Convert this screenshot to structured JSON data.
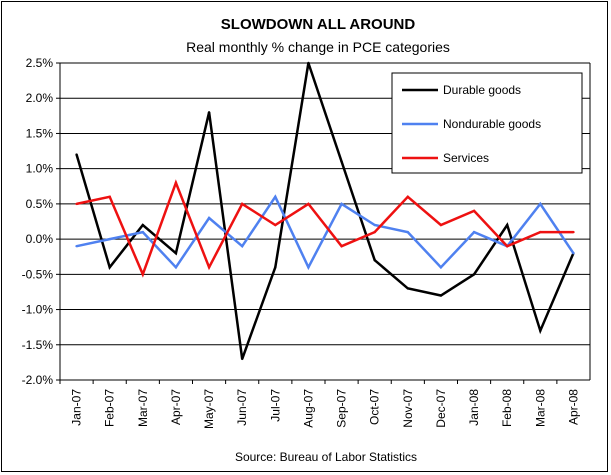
{
  "chart_data": {
    "type": "line",
    "title": "SLOWDOWN ALL AROUND",
    "subtitle": "Real monthly % change in PCE categories",
    "source": "Source: Bureau of Labor Statistics",
    "categories": [
      "Jan-07",
      "Feb-07",
      "Mar-07",
      "Apr-07",
      "May-07",
      "Jun-07",
      "Jul-07",
      "Aug-07",
      "Sep-07",
      "Oct-07",
      "Nov-07",
      "Dec-07",
      "Jan-08",
      "Feb-08",
      "Mar-08",
      "Apr-08"
    ],
    "ylim": [
      -2.0,
      2.5
    ],
    "yticks": [
      2.5,
      2.0,
      1.5,
      1.0,
      0.5,
      0.0,
      -0.5,
      -1.0,
      -1.5,
      -2.0
    ],
    "ytick_labels": [
      "2.5%",
      "2.0%",
      "1.5%",
      "1.0%",
      "0.5%",
      "0.0%",
      "-0.5%",
      "-1.0%",
      "-1.5%",
      "-2.0%"
    ],
    "grid": true,
    "legend_position": "top-right",
    "series": [
      {
        "name": "Durable goods",
        "color": "#000000",
        "values": [
          1.2,
          -0.4,
          0.2,
          -0.2,
          1.8,
          -1.7,
          -0.4,
          2.5,
          1.1,
          -0.3,
          -0.7,
          -0.8,
          -0.5,
          0.2,
          -1.3,
          -0.2
        ]
      },
      {
        "name": "Nondurable goods",
        "color": "#4f81f0",
        "values": [
          -0.1,
          0.0,
          0.1,
          -0.4,
          0.3,
          -0.1,
          0.6,
          -0.4,
          0.5,
          0.2,
          0.1,
          -0.4,
          0.1,
          -0.1,
          0.5,
          -0.2
        ]
      },
      {
        "name": "Services",
        "color": "#ee1111",
        "values": [
          0.5,
          0.6,
          -0.5,
          0.8,
          -0.4,
          0.5,
          0.2,
          0.5,
          -0.1,
          0.1,
          0.6,
          0.2,
          0.4,
          -0.1,
          0.1,
          0.1
        ]
      }
    ]
  }
}
